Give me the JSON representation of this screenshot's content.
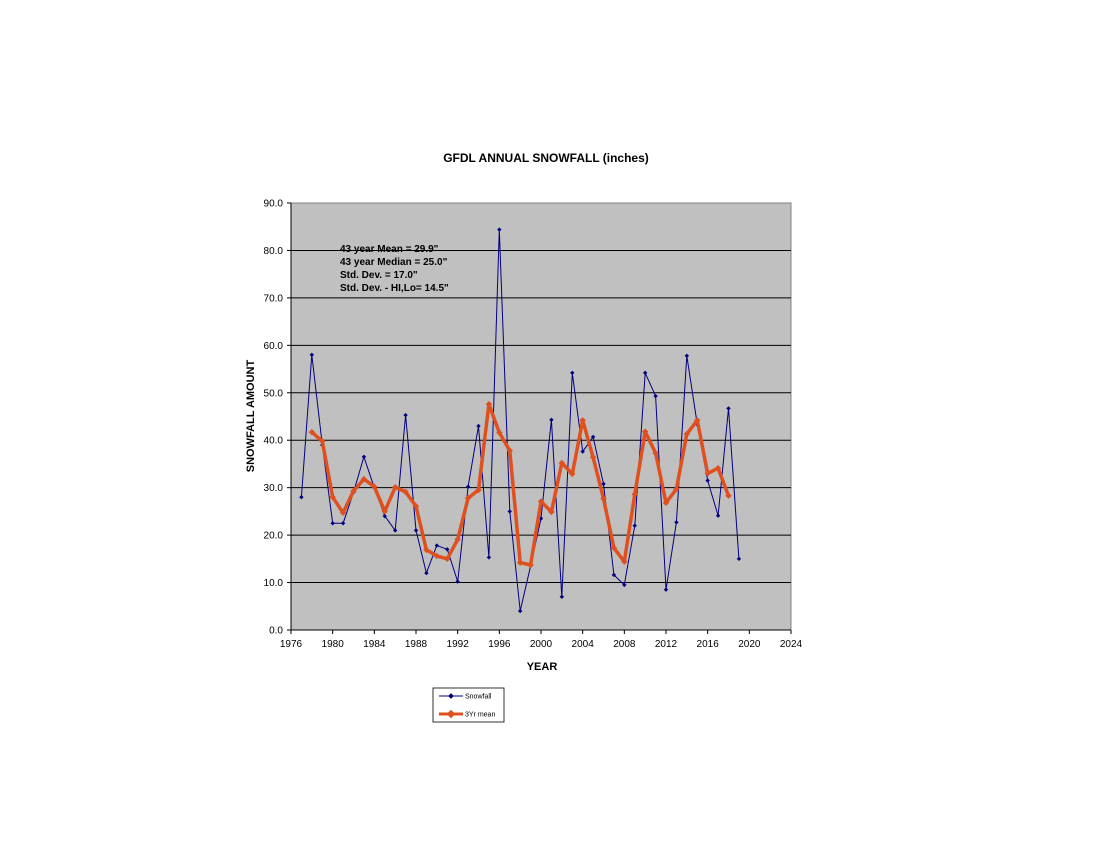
{
  "chart_data": {
    "type": "line",
    "title": "GFDL ANNUAL SNOWFALL  (inches)",
    "xlabel": "YEAR",
    "ylabel": "SNOWFALL AMOUNT",
    "xlim": [
      1976,
      2024
    ],
    "ylim": [
      0,
      90
    ],
    "x_ticks": [
      "1976",
      "1980",
      "1984",
      "1988",
      "1992",
      "1996",
      "2000",
      "2004",
      "2008",
      "2012",
      "2016",
      "2020",
      "2024"
    ],
    "y_ticks": [
      "0.0",
      "10.0",
      "20.0",
      "30.0",
      "40.0",
      "50.0",
      "60.0",
      "70.0",
      "80.0",
      "90.0"
    ],
    "grid": "horizontal",
    "legend_position": "bottom-left",
    "annotations": [
      "43 year Mean = 29.9\"",
      "43 year Median = 25.0\"",
      "Std. Dev. = 17.0\"",
      "Std. Dev. - HI,Lo= 14.5\""
    ],
    "colors": {
      "plot_bg": "#c0c0c0",
      "snowfall": "#000080",
      "mean": "#e0501e"
    },
    "series": [
      {
        "name": "Snowfall",
        "x": [
          1977,
          1978,
          1979,
          1980,
          1981,
          1982,
          1983,
          1984,
          1985,
          1986,
          1987,
          1988,
          1989,
          1990,
          1991,
          1992,
          1993,
          1994,
          1995,
          1996,
          1997,
          1998,
          1999,
          2000,
          2001,
          2002,
          2003,
          2004,
          2005,
          2006,
          2007,
          2008,
          2009,
          2010,
          2011,
          2012,
          2013,
          2014,
          2015,
          2016,
          2017,
          2018,
          2019
        ],
        "y": [
          28.0,
          58.0,
          39.0,
          22.5,
          22.5,
          29.0,
          36.5,
          30.0,
          24.0,
          21.0,
          45.3,
          21.0,
          12.0,
          17.8,
          17.0,
          10.2,
          30.2,
          43.0,
          15.3,
          84.4,
          25.0,
          4.0,
          13.5,
          23.5,
          44.3,
          7.0,
          54.2,
          37.6,
          40.7,
          30.8,
          11.6,
          9.5,
          22.0,
          54.2,
          49.3,
          8.5,
          22.7,
          57.8,
          43.3,
          31.5,
          24.1,
          46.7,
          15.0
        ]
      },
      {
        "name": "3Yr mean",
        "x": [
          1978,
          1979,
          1980,
          1981,
          1982,
          1983,
          1984,
          1985,
          1986,
          1987,
          1988,
          1989,
          1990,
          1991,
          1992,
          1993,
          1994,
          1995,
          1996,
          1997,
          1998,
          1999,
          2000,
          2001,
          2002,
          2003,
          2004,
          2005,
          2006,
          2007,
          2008,
          2009,
          2010,
          2011,
          2012,
          2013,
          2014,
          2015,
          2016,
          2017,
          2018
        ],
        "y": [
          41.7,
          39.8,
          28.0,
          24.7,
          29.3,
          31.8,
          30.2,
          25.0,
          30.1,
          29.1,
          26.1,
          16.9,
          15.6,
          15.0,
          19.1,
          27.8,
          29.5,
          47.6,
          41.6,
          37.8,
          14.2,
          13.7,
          27.1,
          24.9,
          35.2,
          32.9,
          44.2,
          36.4,
          27.7,
          17.3,
          14.4,
          28.6,
          41.8,
          37.3,
          26.8,
          29.7,
          41.3,
          44.2,
          33.0,
          34.1,
          28.3
        ]
      }
    ]
  }
}
